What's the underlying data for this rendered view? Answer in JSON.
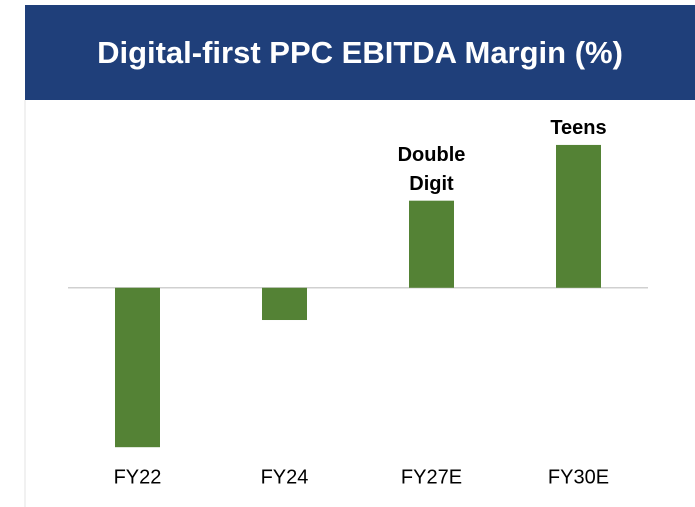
{
  "chart_data": {
    "type": "bar",
    "title": "Digital-first PPC EBITDA Margin (%)",
    "categories": [
      "FY22",
      "FY24",
      "FY27E",
      "FY30E"
    ],
    "values": [
      -18.3,
      -3.7,
      10,
      16.4
    ],
    "bar_labels": [
      null,
      null,
      "Double Digit",
      "Teens"
    ],
    "color": "#548235",
    "ylim": [
      -20,
      18
    ]
  }
}
